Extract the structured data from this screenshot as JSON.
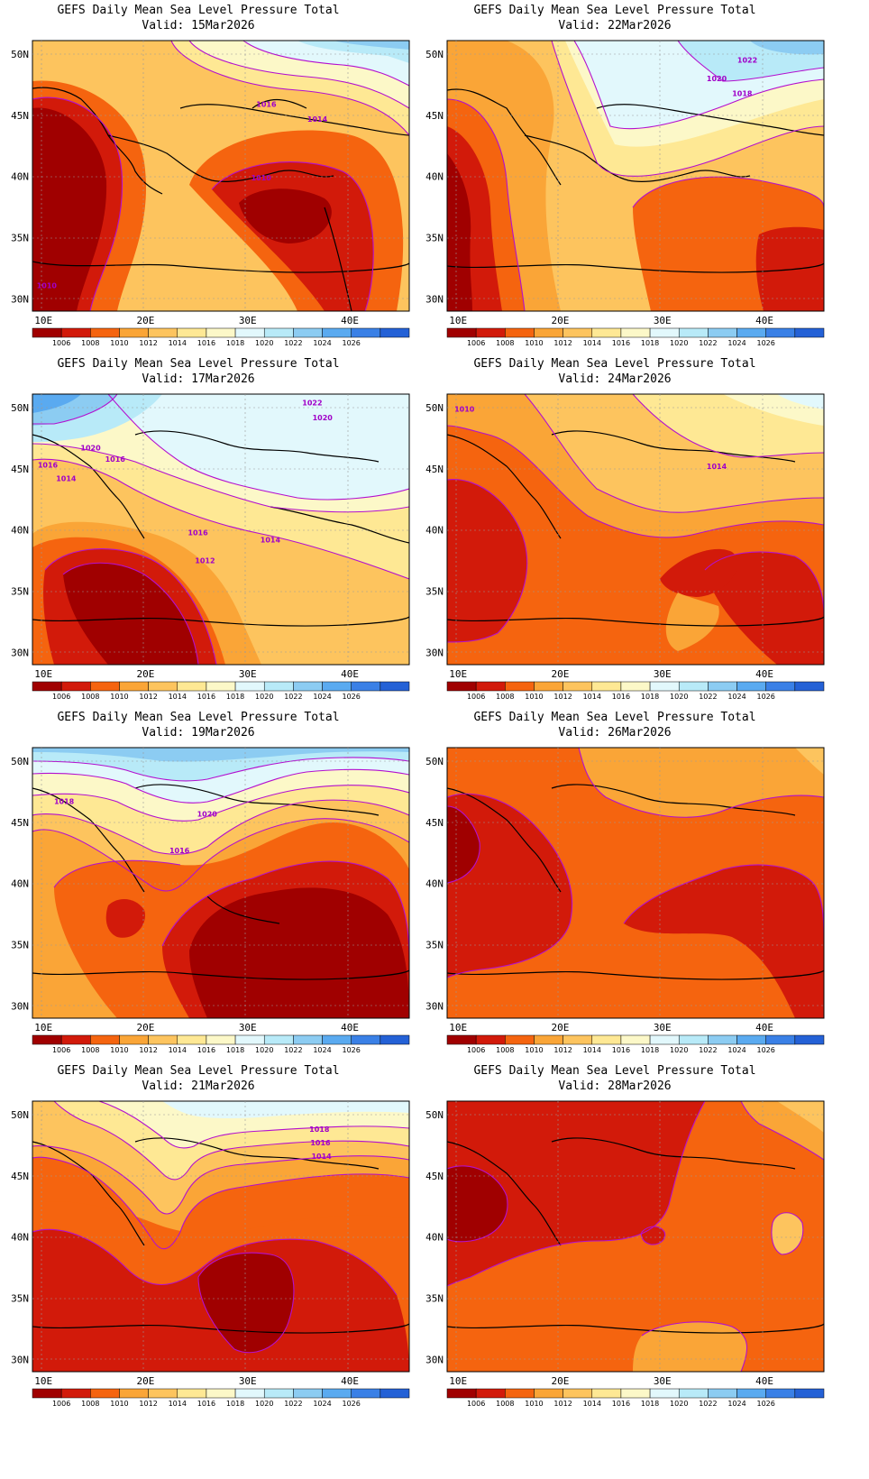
{
  "colorbar": {
    "labels": [
      "1006",
      "1008",
      "1010",
      "1012",
      "1014",
      "1016",
      "1018",
      "1020",
      "1022",
      "1024",
      "1026"
    ],
    "colors": [
      "#a00000",
      "#d21a0a",
      "#f5640f",
      "#faa537",
      "#fdc45e",
      "#fee894",
      "#fcf8c8",
      "#e2f8fc",
      "#b8eaf8",
      "#8cccf2",
      "#5aaaf0",
      "#3a80e6",
      "#2461d6"
    ]
  },
  "axes": {
    "lat_labels": [
      "50N",
      "45N",
      "40N",
      "35N",
      "30N"
    ],
    "lon_labels": [
      "10E",
      "20E",
      "30E",
      "40E"
    ]
  },
  "panels": [
    {
      "title": "GEFS Daily Mean Sea Level Pressure Total",
      "valid": "Valid: 15Mar2026",
      "contour_labels": [
        {
          "text": "1016",
          "lon": 32.0,
          "lat": 45.9
        },
        {
          "text": "1014",
          "lon": 37.0,
          "lat": 44.7
        },
        {
          "text": "1010",
          "lon": 31.5,
          "lat": 39.9
        },
        {
          "text": "1010",
          "lon": 10.5,
          "lat": 31.1
        }
      ]
    },
    {
      "title": "GEFS Daily Mean Sea Level Pressure Total",
      "valid": "Valid: 22Mar2026",
      "contour_labels": [
        {
          "text": "1022",
          "lon": 38.5,
          "lat": 49.5
        },
        {
          "text": "1020",
          "lon": 35.5,
          "lat": 48.0
        },
        {
          "text": "1018",
          "lon": 38.0,
          "lat": 46.8
        }
      ]
    },
    {
      "title": "GEFS Daily Mean Sea Level Pressure Total",
      "valid": "Valid: 17Mar2026",
      "contour_labels": [
        {
          "text": "1022",
          "lon": 36.5,
          "lat": 50.4
        },
        {
          "text": "1020",
          "lon": 37.5,
          "lat": 49.2
        },
        {
          "text": "1020",
          "lon": 14.8,
          "lat": 46.7
        },
        {
          "text": "1016",
          "lon": 10.6,
          "lat": 45.3
        },
        {
          "text": "1016",
          "lon": 17.2,
          "lat": 45.8
        },
        {
          "text": "1014",
          "lon": 12.4,
          "lat": 44.2
        },
        {
          "text": "1016",
          "lon": 25.3,
          "lat": 39.8
        },
        {
          "text": "1014",
          "lon": 32.4,
          "lat": 39.2
        },
        {
          "text": "1012",
          "lon": 26.0,
          "lat": 37.5
        }
      ]
    },
    {
      "title": "GEFS Daily Mean Sea Level Pressure Total",
      "valid": "Valid: 24Mar2026",
      "contour_labels": [
        {
          "text": "1010",
          "lon": 10.8,
          "lat": 49.9
        },
        {
          "text": "1014",
          "lon": 35.5,
          "lat": 45.2
        }
      ]
    },
    {
      "title": "GEFS Daily Mean Sea Level Pressure Total",
      "valid": "Valid: 19Mar2026",
      "contour_labels": [
        {
          "text": "1018",
          "lon": 12.2,
          "lat": 46.7
        },
        {
          "text": "1020",
          "lon": 26.2,
          "lat": 45.7
        },
        {
          "text": "1016",
          "lon": 23.5,
          "lat": 42.7
        }
      ]
    },
    {
      "title": "GEFS Daily Mean Sea Level Pressure Total",
      "valid": "Valid: 26Mar2026",
      "contour_labels": []
    },
    {
      "title": "GEFS Daily Mean Sea Level Pressure Total",
      "valid": "Valid: 21Mar2026",
      "contour_labels": [
        {
          "text": "1018",
          "lon": 37.2,
          "lat": 48.8
        },
        {
          "text": "1016",
          "lon": 37.3,
          "lat": 47.7
        },
        {
          "text": "1014",
          "lon": 37.4,
          "lat": 46.6
        }
      ]
    },
    {
      "title": "GEFS Daily Mean Sea Level Pressure Total",
      "valid": "Valid: 28Mar2026",
      "contour_labels": []
    }
  ]
}
